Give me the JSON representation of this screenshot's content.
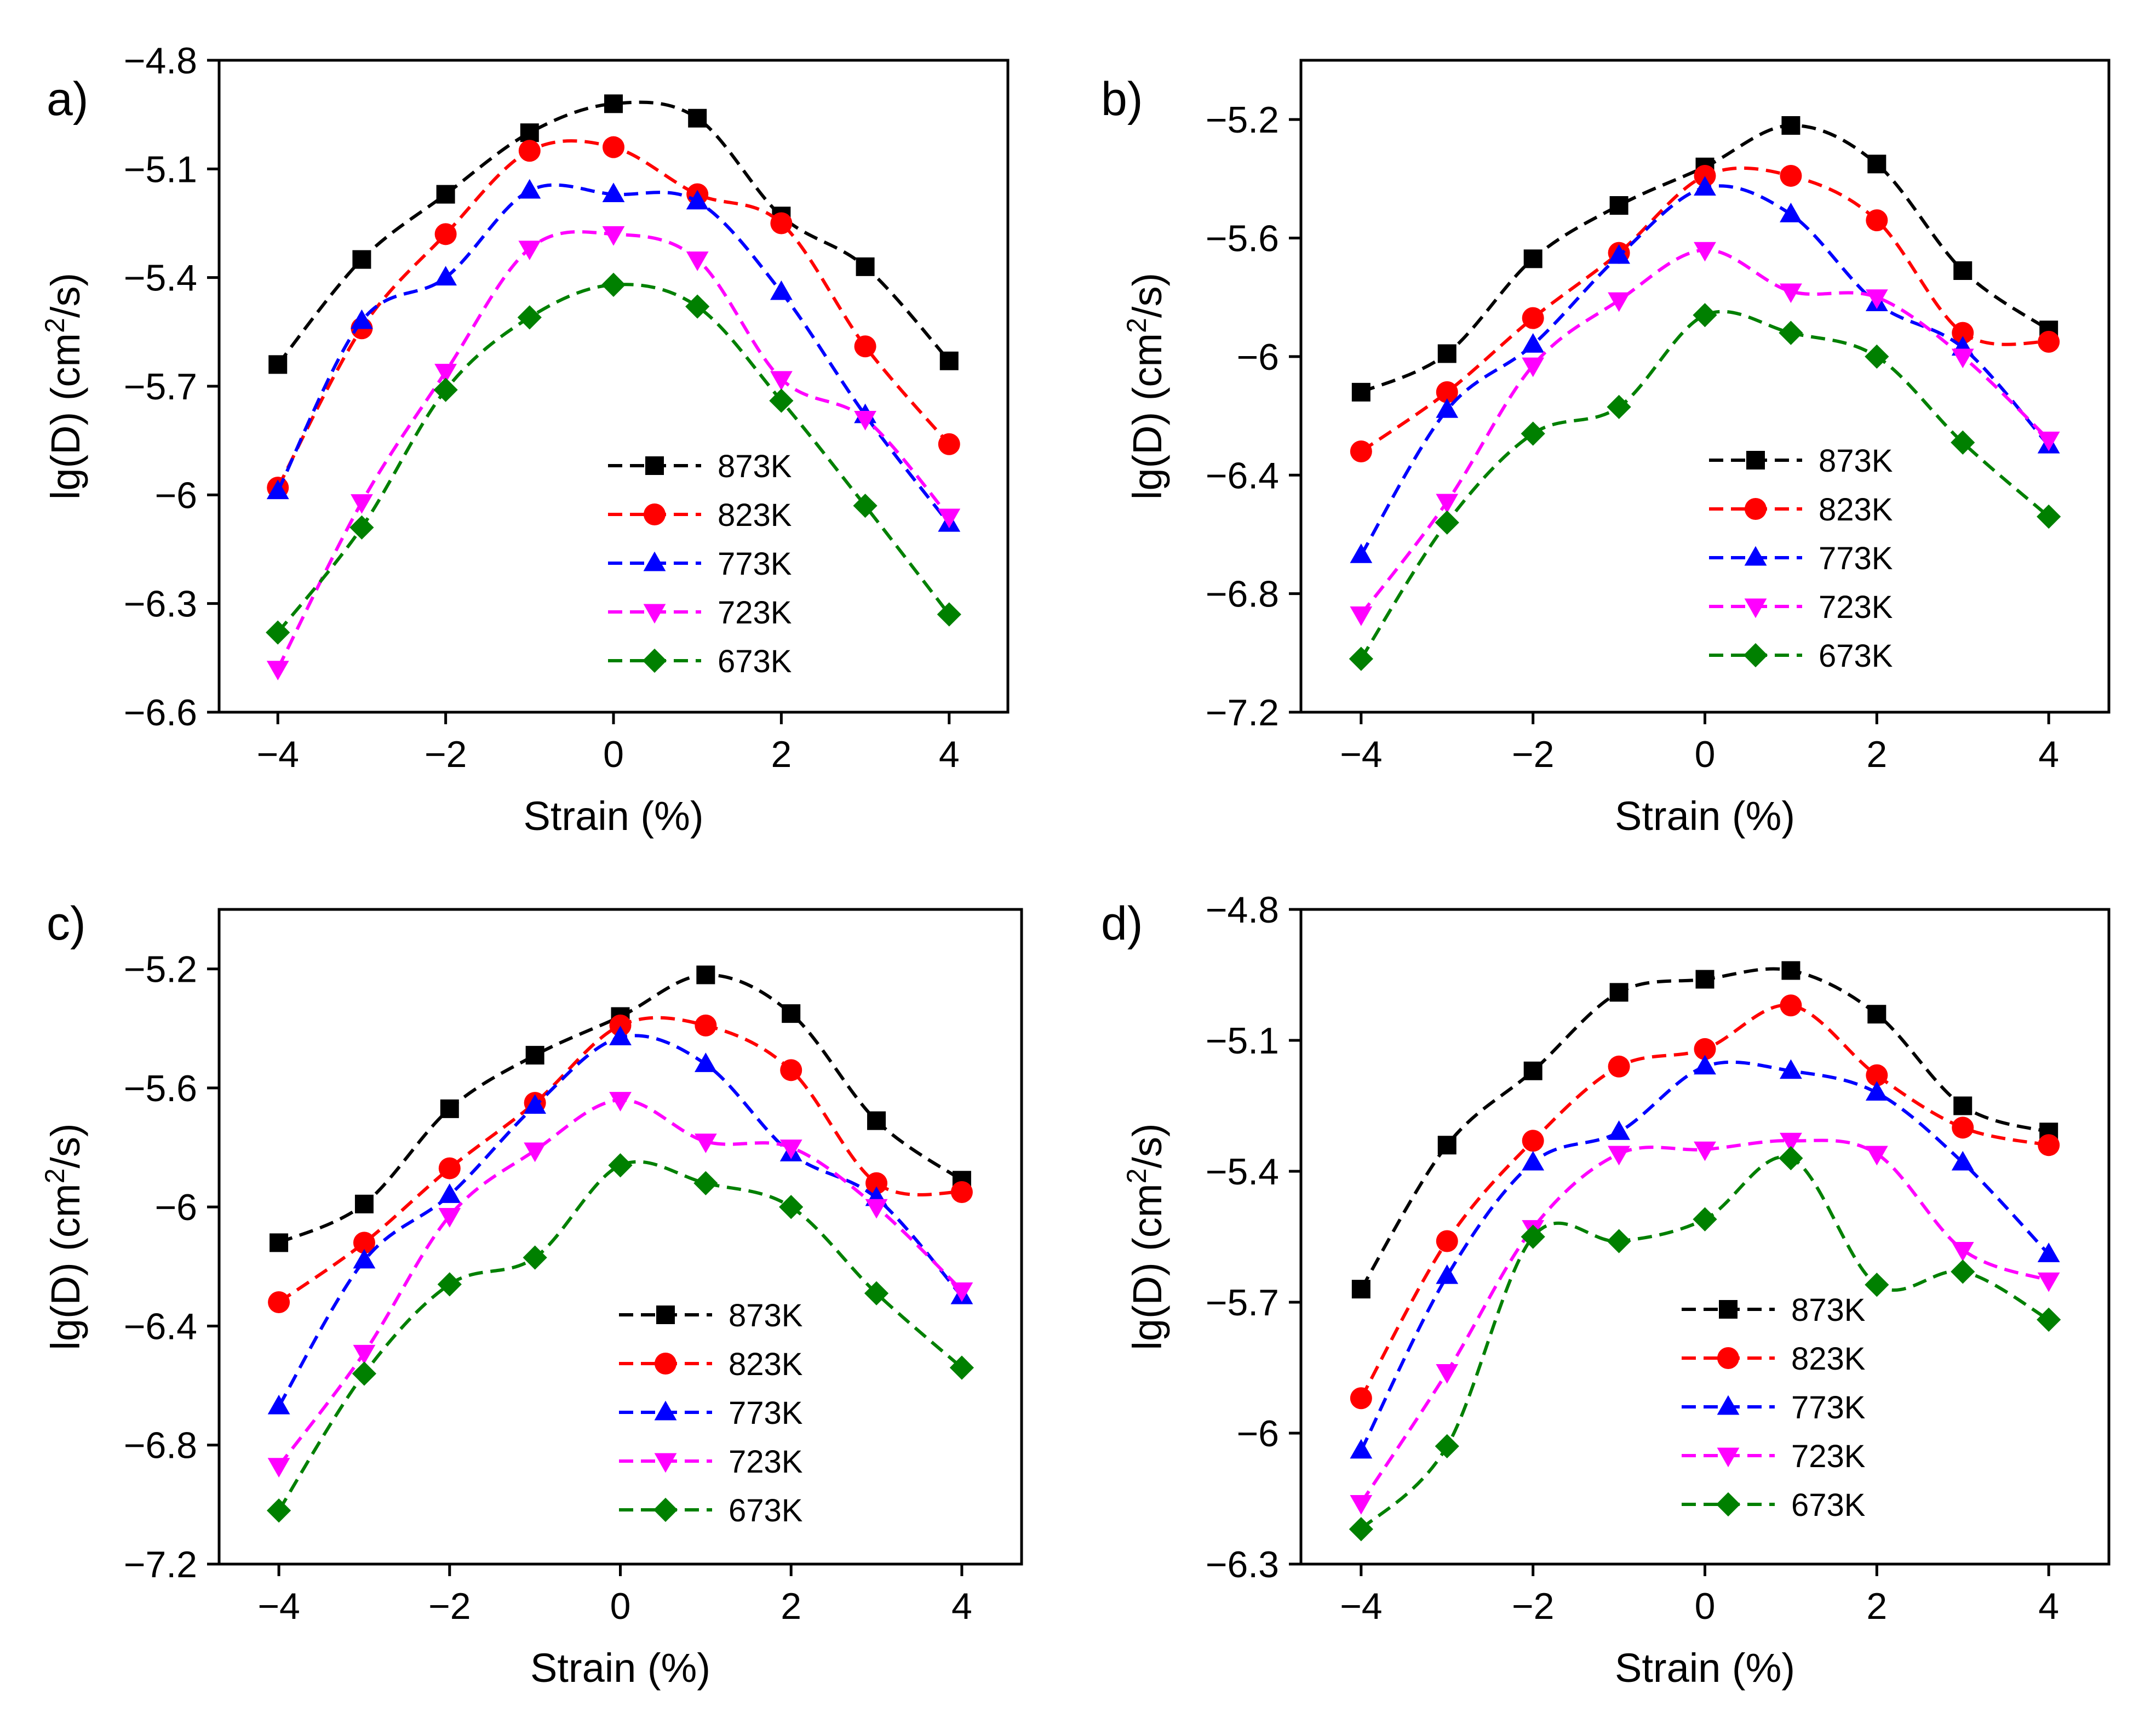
{
  "chart_data": [
    {
      "type": "line",
      "panel_label": "a)",
      "xlabel": "Strain (%)",
      "ylabel": "lg(D) (cm2/s)",
      "xlim": [
        -4.7,
        4.7
      ],
      "ylim": [
        -6.6,
        -4.8
      ],
      "xticks": [
        -4,
        -2,
        0,
        2,
        4
      ],
      "yticks": [
        -4.8,
        -5.1,
        -5.4,
        -5.7,
        -6.0,
        -6.3,
        -6.6
      ],
      "x": [
        -4,
        -3,
        -2,
        -1,
        0,
        1,
        2,
        3,
        4
      ],
      "legend_position": "lower-right",
      "series": [
        {
          "name": "873K",
          "color": "#000000",
          "marker": "square",
          "values": [
            -5.64,
            -5.35,
            -5.17,
            -5.0,
            -4.92,
            -4.96,
            -5.23,
            -5.37,
            -5.63
          ]
        },
        {
          "name": "823K",
          "color": "#ff0000",
          "marker": "circle",
          "values": [
            -5.98,
            -5.54,
            -5.28,
            -5.05,
            -5.04,
            -5.17,
            -5.25,
            -5.59,
            -5.86
          ]
        },
        {
          "name": "773K",
          "color": "#0000ff",
          "marker": "triangle-up",
          "values": [
            -5.99,
            -5.52,
            -5.4,
            -5.16,
            -5.17,
            -5.19,
            -5.44,
            -5.78,
            -6.08
          ]
        },
        {
          "name": "723K",
          "color": "#ff00ff",
          "marker": "triangle-down",
          "values": [
            -6.48,
            -6.02,
            -5.66,
            -5.32,
            -5.28,
            -5.35,
            -5.68,
            -5.79,
            -6.06
          ]
        },
        {
          "name": "673K",
          "color": "#008000",
          "marker": "diamond",
          "values": [
            -6.38,
            -6.09,
            -5.71,
            -5.51,
            -5.42,
            -5.48,
            -5.74,
            -6.03,
            -6.33
          ]
        }
      ]
    },
    {
      "type": "line",
      "panel_label": "b)",
      "xlabel": "Strain (%)",
      "ylabel": "lg(D) (cm2/s)",
      "xlim": [
        -4.7,
        4.7
      ],
      "ylim": [
        -7.2,
        -5.0
      ],
      "xticks": [
        -4,
        -2,
        0,
        2,
        4
      ],
      "yticks": [
        -5.2,
        -5.6,
        -6.0,
        -6.4,
        -6.8,
        -7.2
      ],
      "x": [
        -4,
        -3,
        -2,
        -1,
        0,
        1,
        2,
        3,
        4
      ],
      "legend_position": "lower-right",
      "series": [
        {
          "name": "873K",
          "color": "#000000",
          "marker": "square",
          "values": [
            -6.12,
            -5.99,
            -5.67,
            -5.49,
            -5.36,
            -5.22,
            -5.35,
            -5.71,
            -5.91
          ]
        },
        {
          "name": "823K",
          "color": "#ff0000",
          "marker": "circle",
          "values": [
            -6.32,
            -6.12,
            -5.87,
            -5.65,
            -5.39,
            -5.39,
            -5.54,
            -5.92,
            -5.95
          ]
        },
        {
          "name": "773K",
          "color": "#0000ff",
          "marker": "triangle-up",
          "values": [
            -6.67,
            -6.18,
            -5.96,
            -5.66,
            -5.43,
            -5.52,
            -5.82,
            -5.97,
            -6.3
          ]
        },
        {
          "name": "723K",
          "color": "#ff00ff",
          "marker": "triangle-down",
          "values": [
            -6.87,
            -6.49,
            -6.03,
            -5.81,
            -5.64,
            -5.78,
            -5.8,
            -6.0,
            -6.28
          ]
        },
        {
          "name": "673K",
          "color": "#008000",
          "marker": "diamond",
          "values": [
            -7.02,
            -6.56,
            -6.26,
            -6.17,
            -5.86,
            -5.92,
            -6.0,
            -6.29,
            -6.54
          ]
        }
      ]
    },
    {
      "type": "line",
      "panel_label": "c)",
      "xlabel": "Strain (%)",
      "ylabel": "lg(D) (cm2/s)",
      "xlim": [
        -4.7,
        4.7
      ],
      "ylim": [
        -7.2,
        -5.0
      ],
      "xticks": [
        -4,
        -2,
        0,
        2,
        4
      ],
      "yticks": [
        -5.2,
        -5.6,
        -6.0,
        -6.4,
        -6.8,
        -7.2
      ],
      "x": [
        -4,
        -3,
        -2,
        -1,
        0,
        1,
        2,
        3,
        4
      ],
      "legend_position": "lower-right",
      "series": [
        {
          "name": "873K",
          "color": "#000000",
          "marker": "square",
          "values": [
            -6.12,
            -5.99,
            -5.67,
            -5.49,
            -5.36,
            -5.22,
            -5.35,
            -5.71,
            -5.91
          ]
        },
        {
          "name": "823K",
          "color": "#ff0000",
          "marker": "circle",
          "values": [
            -6.32,
            -6.12,
            -5.87,
            -5.65,
            -5.39,
            -5.39,
            -5.54,
            -5.92,
            -5.95
          ]
        },
        {
          "name": "773K",
          "color": "#0000ff",
          "marker": "triangle-up",
          "values": [
            -6.67,
            -6.18,
            -5.96,
            -5.66,
            -5.43,
            -5.52,
            -5.82,
            -5.97,
            -6.3
          ]
        },
        {
          "name": "723K",
          "color": "#ff00ff",
          "marker": "triangle-down",
          "values": [
            -6.87,
            -6.49,
            -6.03,
            -5.81,
            -5.64,
            -5.78,
            -5.8,
            -6.0,
            -6.28
          ]
        },
        {
          "name": "673K",
          "color": "#008000",
          "marker": "diamond",
          "values": [
            -7.02,
            -6.56,
            -6.26,
            -6.17,
            -5.86,
            -5.92,
            -6.0,
            -6.29,
            -6.54
          ]
        }
      ]
    },
    {
      "type": "line",
      "panel_label": "d)",
      "xlabel": "Strain (%)",
      "ylabel": "lg(D) (cm2/s)",
      "xlim": [
        -4.7,
        4.7
      ],
      "ylim": [
        -6.3,
        -4.8
      ],
      "xticks": [
        -4,
        -2,
        0,
        2,
        4
      ],
      "yticks": [
        -4.8,
        -5.1,
        -5.4,
        -5.7,
        -6.0,
        -6.3
      ],
      "x": [
        -4,
        -3,
        -2,
        -1,
        0,
        1,
        2,
        3,
        4
      ],
      "legend_position": "lower-right",
      "series": [
        {
          "name": "873K",
          "color": "#000000",
          "marker": "square",
          "values": [
            -5.67,
            -5.34,
            -5.17,
            -4.99,
            -4.96,
            -4.94,
            -5.04,
            -5.25,
            -5.31
          ]
        },
        {
          "name": "823K",
          "color": "#ff0000",
          "marker": "circle",
          "values": [
            -5.92,
            -5.56,
            -5.33,
            -5.16,
            -5.12,
            -5.02,
            -5.18,
            -5.3,
            -5.34
          ]
        },
        {
          "name": "773K",
          "color": "#0000ff",
          "marker": "triangle-up",
          "values": [
            -6.04,
            -5.64,
            -5.38,
            -5.31,
            -5.16,
            -5.17,
            -5.22,
            -5.38,
            -5.59
          ]
        },
        {
          "name": "723K",
          "color": "#ff00ff",
          "marker": "triangle-down",
          "values": [
            -6.16,
            -5.86,
            -5.53,
            -5.36,
            -5.35,
            -5.33,
            -5.36,
            -5.58,
            -5.65
          ]
        },
        {
          "name": "673K",
          "color": "#008000",
          "marker": "diamond",
          "values": [
            -6.22,
            -6.03,
            -5.55,
            -5.56,
            -5.51,
            -5.37,
            -5.66,
            -5.63,
            -5.74
          ]
        }
      ]
    }
  ]
}
